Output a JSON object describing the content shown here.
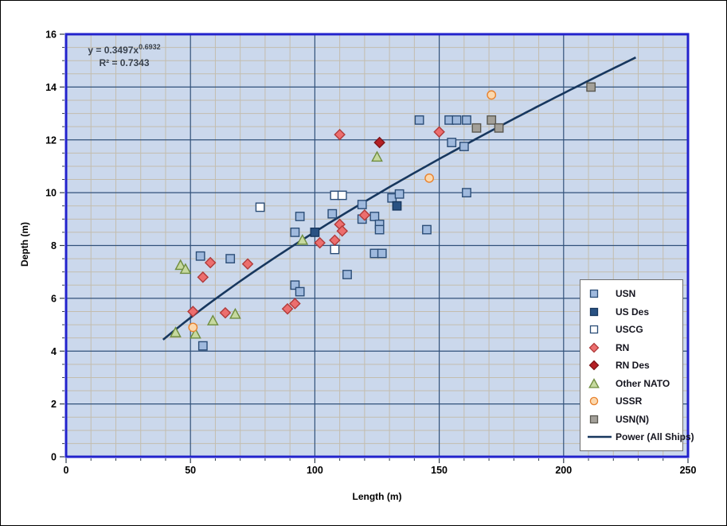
{
  "axis_x": {
    "label": "Length (m)"
  },
  "axis_y": {
    "label": "Depth (m)"
  },
  "equation": {
    "line1_prefix": "y = 0.3497x",
    "line1_exponent": "0.6932",
    "line2": "R² = 0.7343"
  },
  "colors": {
    "plot_bg": "#cbd8ec",
    "plot_border": "#2222cc",
    "grid_major": "#31517a",
    "grid_minor": "#c3bdae",
    "tick": "#2f3a48",
    "tick_label": "#000000",
    "trendline": "#17375e"
  },
  "chart_data": {
    "type": "scatter",
    "title": "",
    "xlabel": "Length (m)",
    "ylabel": "Depth (m)",
    "xlim": [
      0,
      250
    ],
    "ylim": [
      0,
      16
    ],
    "x_ticks": [
      0,
      50,
      100,
      150,
      200,
      250
    ],
    "x_tick_labels": [
      "0",
      "50",
      "100",
      "150",
      "200",
      "250"
    ],
    "x_minor_step": 10,
    "y_ticks": [
      0,
      2,
      4,
      6,
      8,
      10,
      12,
      14,
      16
    ],
    "y_tick_labels": [
      "0",
      "2",
      "4",
      "6",
      "8",
      "10",
      "12",
      "14",
      "16"
    ],
    "y_minor_step": 0.5,
    "grid": "major-and-minor",
    "legend_position": "bottom-right",
    "series": [
      {
        "name": "USN",
        "marker": "square",
        "fill": "#9fb9dd",
        "stroke": "#2b4d77",
        "points": [
          [
            54,
            7.6
          ],
          [
            66,
            7.5
          ],
          [
            55,
            4.2
          ],
          [
            92,
            6.5
          ],
          [
            94,
            6.25
          ],
          [
            113,
            6.9
          ],
          [
            92,
            8.5
          ],
          [
            94,
            9.1
          ],
          [
            107,
            9.2
          ],
          [
            119,
            9.55
          ],
          [
            119,
            9.0
          ],
          [
            124,
            9.1
          ],
          [
            126,
            8.8
          ],
          [
            126,
            8.6
          ],
          [
            124,
            7.7
          ],
          [
            127,
            7.7
          ],
          [
            131,
            9.8
          ],
          [
            134,
            9.95
          ],
          [
            145,
            8.6
          ],
          [
            142,
            12.75
          ],
          [
            154,
            12.75
          ],
          [
            157,
            12.75
          ],
          [
            161,
            12.75
          ],
          [
            155,
            11.9
          ],
          [
            160,
            11.75
          ],
          [
            161,
            10.0
          ]
        ]
      },
      {
        "name": "US Des",
        "marker": "square",
        "fill": "#2a5283",
        "stroke": "#17375e",
        "points": [
          [
            100,
            8.5
          ],
          [
            133,
            9.5
          ]
        ]
      },
      {
        "name": "USCG",
        "marker": "square",
        "fill": "#ffffff",
        "stroke": "#2b4d77",
        "points": [
          [
            78,
            9.45
          ],
          [
            108,
            9.9
          ],
          [
            111,
            9.9
          ],
          [
            108,
            7.85
          ]
        ]
      },
      {
        "name": "RN",
        "marker": "diamond",
        "fill": "#ec6e6e",
        "stroke": "#b03a3a",
        "points": [
          [
            51,
            5.5
          ],
          [
            55,
            6.8
          ],
          [
            58,
            7.35
          ],
          [
            64,
            5.45
          ],
          [
            73,
            7.3
          ],
          [
            89,
            5.6
          ],
          [
            92,
            5.8
          ],
          [
            102,
            8.1
          ],
          [
            108,
            8.2
          ],
          [
            110,
            8.8
          ],
          [
            111,
            8.55
          ],
          [
            110,
            12.2
          ],
          [
            120,
            9.15
          ],
          [
            150,
            12.3
          ]
        ]
      },
      {
        "name": "RN Des",
        "marker": "diamond",
        "fill": "#b52025",
        "stroke": "#7e1518",
        "points": [
          [
            126,
            11.9
          ]
        ]
      },
      {
        "name": "Other NATO",
        "marker": "triangle",
        "fill": "#c6d99f",
        "stroke": "#6f8d3f",
        "points": [
          [
            44,
            4.7
          ],
          [
            46,
            7.25
          ],
          [
            48,
            7.1
          ],
          [
            52,
            4.65
          ],
          [
            59,
            5.15
          ],
          [
            68,
            5.4
          ],
          [
            95,
            8.2
          ],
          [
            125,
            11.35
          ]
        ]
      },
      {
        "name": "USSR",
        "marker": "circle",
        "fill": "#fbd8ae",
        "stroke": "#e8822e",
        "points": [
          [
            51,
            4.9
          ],
          [
            146,
            10.55
          ],
          [
            171,
            13.7
          ]
        ]
      },
      {
        "name": "USN(N)",
        "marker": "square",
        "fill": "#a3a099",
        "stroke": "#5a5850",
        "points": [
          [
            165,
            12.45
          ],
          [
            171,
            12.75
          ],
          [
            174,
            12.45
          ],
          [
            211,
            14.0
          ]
        ]
      }
    ],
    "trendline": {
      "name": "Power (All Ships)",
      "type": "power",
      "a": 0.3497,
      "b": 0.6932,
      "r_squared": 0.7343,
      "x_range": [
        39,
        230
      ]
    }
  }
}
